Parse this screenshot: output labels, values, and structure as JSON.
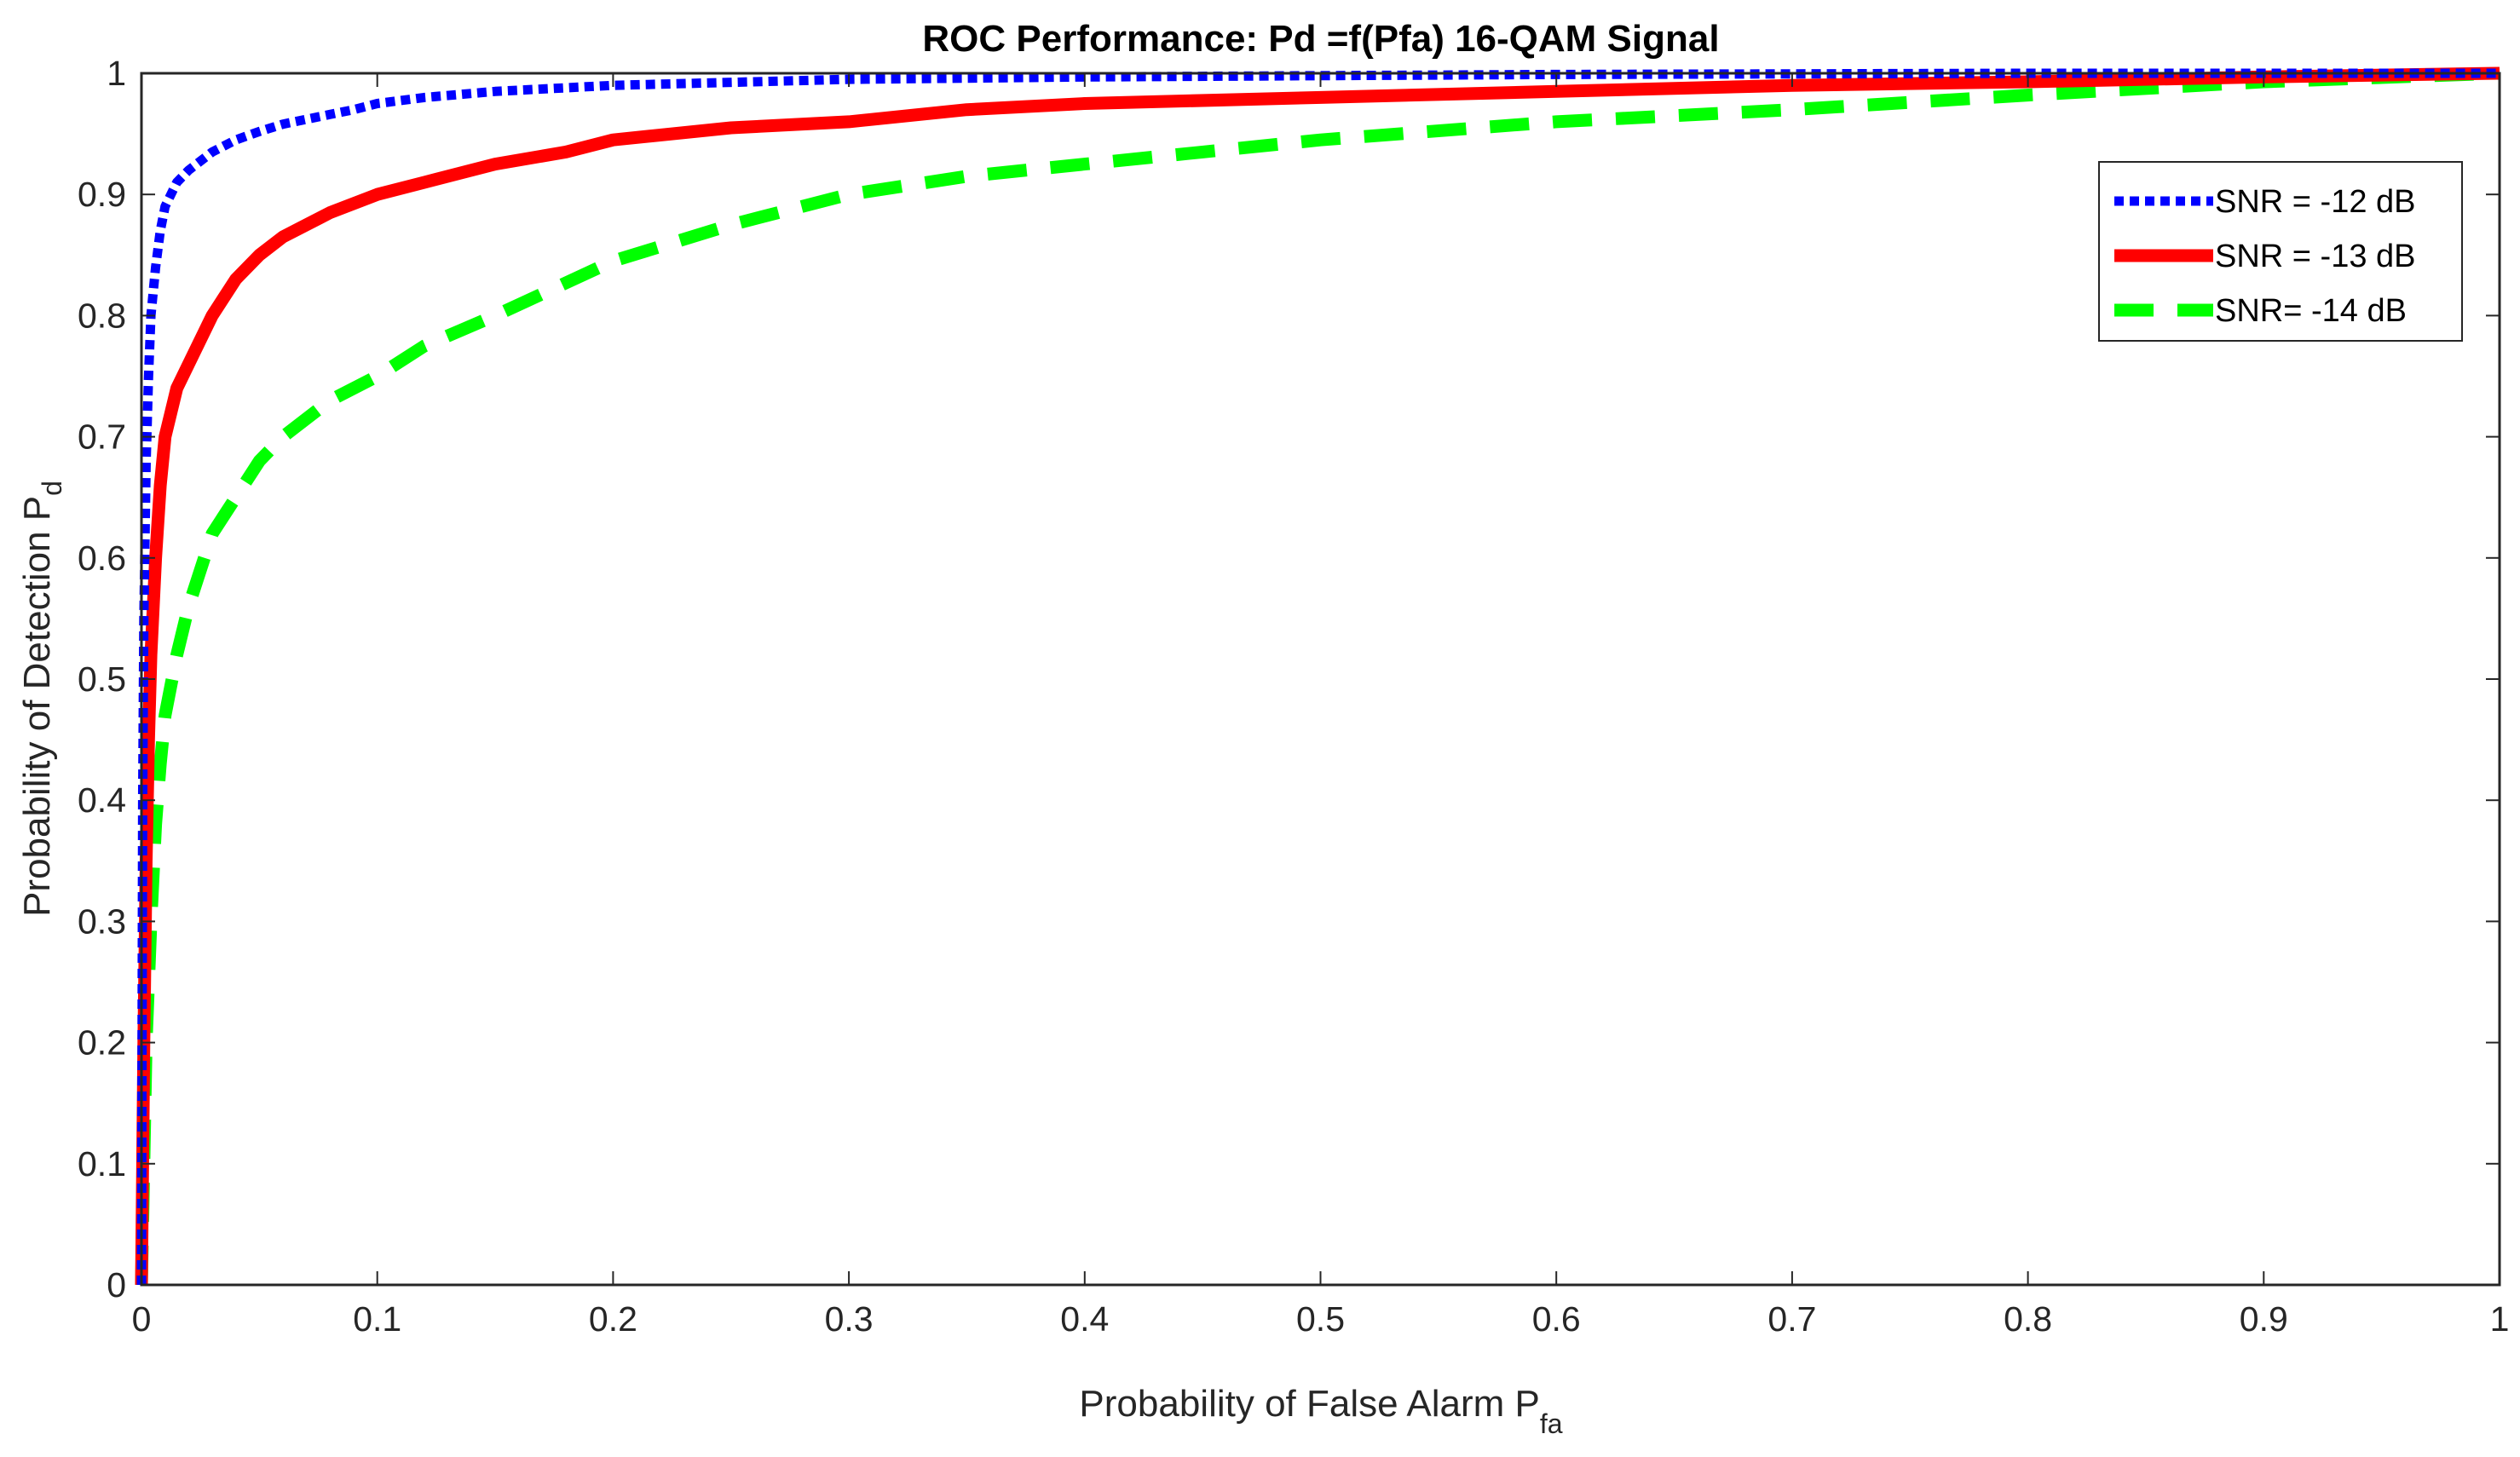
{
  "chart_data": {
    "type": "line",
    "title": "ROC Performance: Pd  =f(Pfa) 16-QAM Signal",
    "xlabel": {
      "main": "Probability of False Alarm P",
      "sub": "fa"
    },
    "ylabel": {
      "main": "Probability of Detection P",
      "sub": "d"
    },
    "xlim": [
      0,
      1
    ],
    "ylim": [
      0,
      1
    ],
    "xticks": [
      0,
      0.1,
      0.2,
      0.3,
      0.4,
      0.5,
      0.6,
      0.7,
      0.8,
      0.9,
      1
    ],
    "xtick_labels": [
      "0",
      "0.1",
      "0.2",
      "0.3",
      "0.4",
      "0.5",
      "0.6",
      "0.7",
      "0.8",
      "0.9",
      "1"
    ],
    "yticks": [
      0,
      0.1,
      0.2,
      0.3,
      0.4,
      0.5,
      0.6,
      0.7,
      0.8,
      0.9,
      1
    ],
    "ytick_labels": [
      "0",
      "0.1",
      "0.2",
      "0.3",
      "0.4",
      "0.5",
      "0.6",
      "0.7",
      "0.8",
      "0.9",
      "1"
    ],
    "grid": false,
    "legend_position": "top-right",
    "series": [
      {
        "name": "SNR = -12 dB",
        "color": "#0000ff",
        "style": "dotted",
        "x": [
          0,
          0.0005,
          0.001,
          0.002,
          0.003,
          0.004,
          0.006,
          0.008,
          0.01,
          0.015,
          0.02,
          0.03,
          0.04,
          0.05,
          0.06,
          0.07,
          0.08,
          0.09,
          0.1,
          0.12,
          0.15,
          0.2,
          0.3,
          0.4,
          0.5,
          0.6,
          0.7,
          0.8,
          0.9,
          1.0
        ],
        "y": [
          0,
          0.4,
          0.55,
          0.68,
          0.75,
          0.8,
          0.84,
          0.87,
          0.89,
          0.91,
          0.92,
          0.935,
          0.945,
          0.952,
          0.958,
          0.962,
          0.966,
          0.97,
          0.975,
          0.98,
          0.985,
          0.99,
          0.995,
          0.997,
          0.998,
          0.999,
          0.9995,
          1.0,
          1.0,
          1.0
        ]
      },
      {
        "name": "SNR = -13 dB",
        "color": "#ff0000",
        "style": "solid",
        "x": [
          0,
          0.001,
          0.002,
          0.003,
          0.004,
          0.006,
          0.008,
          0.01,
          0.015,
          0.02,
          0.03,
          0.04,
          0.05,
          0.06,
          0.08,
          0.1,
          0.12,
          0.15,
          0.18,
          0.2,
          0.25,
          0.3,
          0.35,
          0.4,
          0.5,
          0.6,
          0.7,
          0.8,
          0.9,
          1.0
        ],
        "y": [
          0,
          0.2,
          0.35,
          0.45,
          0.52,
          0.6,
          0.66,
          0.7,
          0.74,
          0.76,
          0.8,
          0.83,
          0.85,
          0.865,
          0.885,
          0.9,
          0.91,
          0.925,
          0.935,
          0.945,
          0.955,
          0.96,
          0.97,
          0.975,
          0.98,
          0.985,
          0.99,
          0.993,
          0.997,
          1.0
        ]
      },
      {
        "name": "SNR= -14 dB",
        "color": "#00ff00",
        "style": "dashed",
        "x": [
          0,
          0.001,
          0.002,
          0.004,
          0.006,
          0.008,
          0.01,
          0.015,
          0.02,
          0.03,
          0.04,
          0.05,
          0.06,
          0.08,
          0.1,
          0.12,
          0.15,
          0.2,
          0.25,
          0.3,
          0.35,
          0.4,
          0.45,
          0.5,
          0.6,
          0.7,
          0.8,
          0.9,
          1.0
        ],
        "y": [
          0,
          0.1,
          0.2,
          0.3,
          0.38,
          0.43,
          0.47,
          0.52,
          0.56,
          0.62,
          0.65,
          0.68,
          0.7,
          0.73,
          0.75,
          0.775,
          0.8,
          0.845,
          0.875,
          0.9,
          0.915,
          0.925,
          0.935,
          0.945,
          0.96,
          0.97,
          0.982,
          0.993,
          1.0
        ]
      }
    ]
  }
}
